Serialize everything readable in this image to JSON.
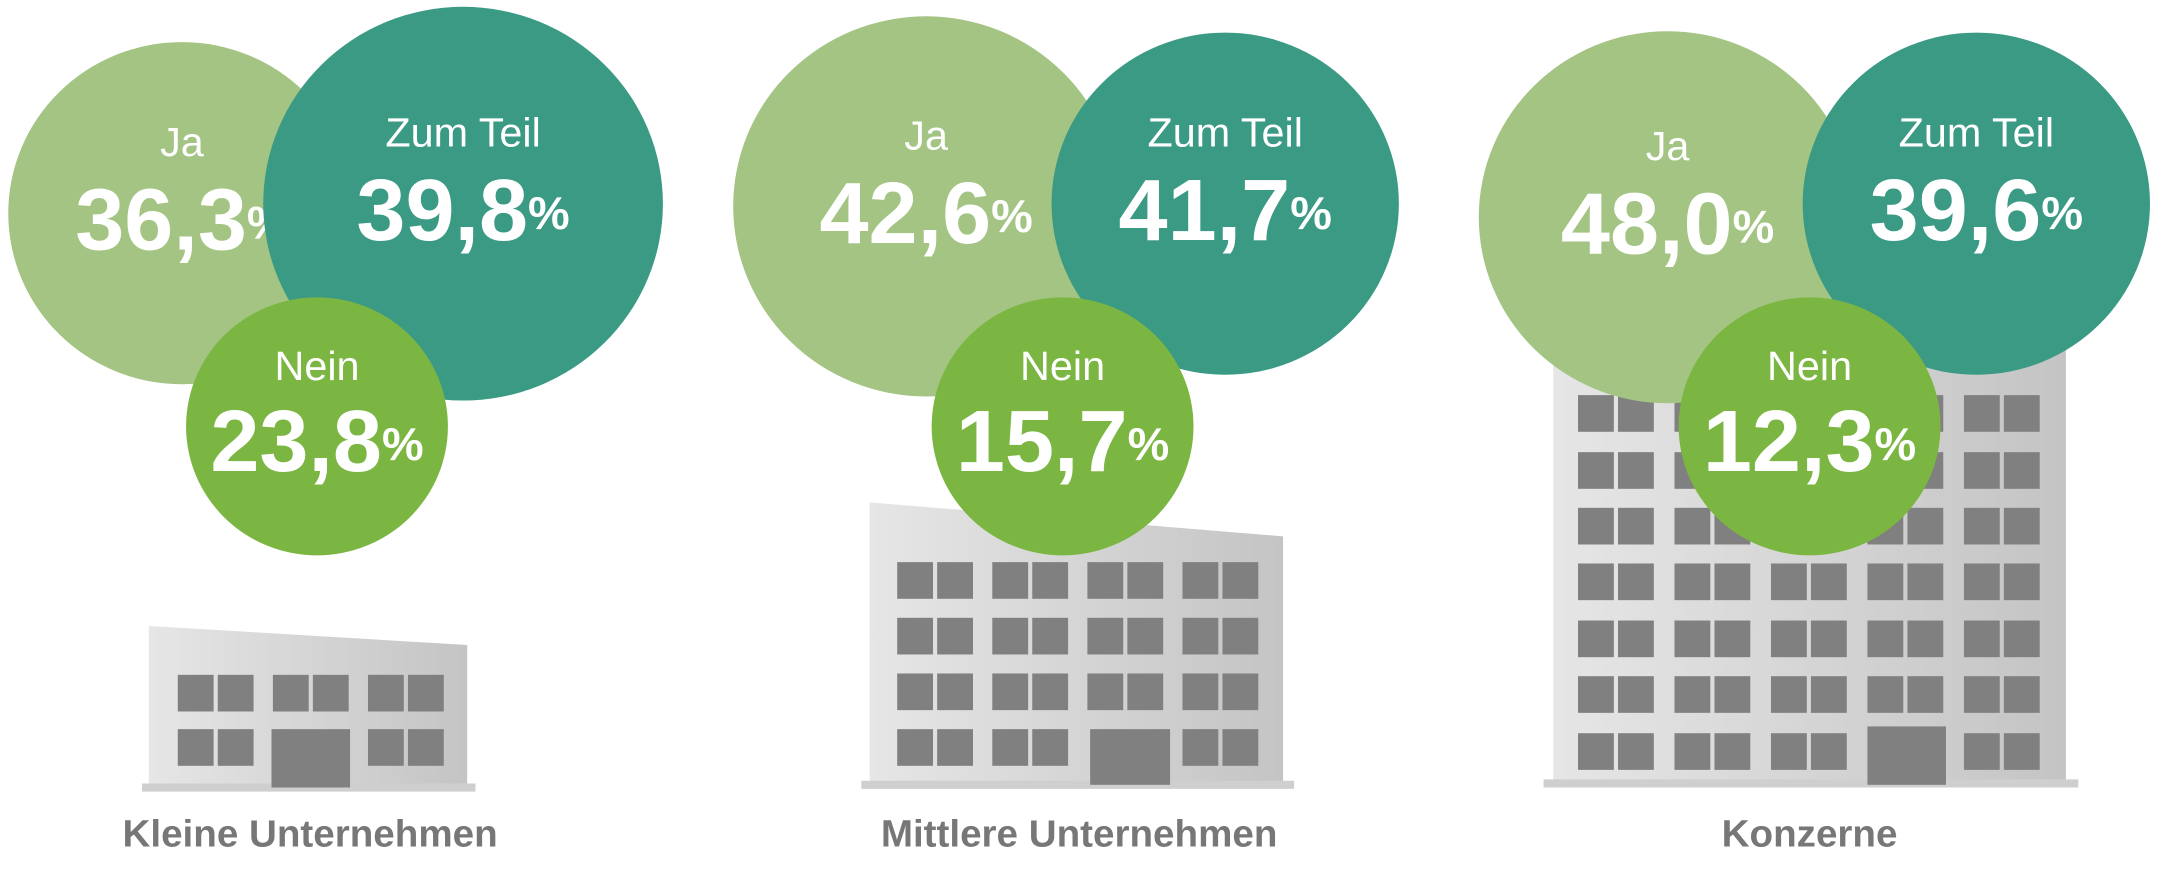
{
  "chart_data": {
    "type": "bubble",
    "categories": [
      "Ja",
      "Zum Teil",
      "Nein"
    ],
    "colors": [
      "#a3c483",
      "#3a9a84",
      "#7cb642"
    ],
    "unit": "%",
    "series": [
      {
        "name": "Kleine Unternehmen",
        "values": [
          36.3,
          39.8,
          23.8
        ],
        "value_labels": [
          "36,3",
          "39,8",
          "23,8"
        ]
      },
      {
        "name": "Mittlere Unternehmen",
        "values": [
          42.6,
          41.7,
          15.7
        ],
        "value_labels": [
          "42,6",
          "41,7",
          "15,7"
        ]
      },
      {
        "name": "Konzerne",
        "values": [
          48.0,
          39.6,
          12.3
        ],
        "value_labels": [
          "48,0",
          "39,6",
          "12,3"
        ]
      }
    ]
  }
}
